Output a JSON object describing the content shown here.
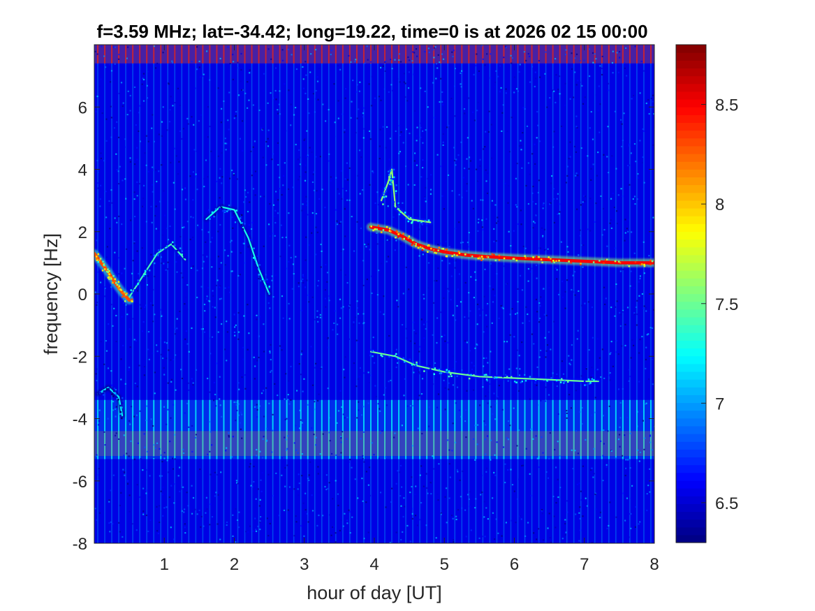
{
  "chart_data": {
    "type": "heatmap",
    "title": "f=3.59 MHz;  lat=-34.42; long=19.22, time=0 is at 2026 02 15 00:00",
    "xlabel": "hour of day [UT]",
    "ylabel": "frequency [Hz]",
    "xlim": [
      0,
      8
    ],
    "ylim": [
      -8,
      8
    ],
    "xticks": [
      1,
      2,
      3,
      4,
      5,
      6,
      7,
      8
    ],
    "yticks": [
      -8,
      -6,
      -4,
      -2,
      0,
      2,
      4,
      6
    ],
    "colormap": "jet",
    "colorbar": {
      "range": [
        6.3,
        8.8
      ],
      "ticks": [
        6.5,
        7,
        7.5,
        8,
        8.5
      ]
    },
    "background_level": 6.55,
    "bright_traces": [
      {
        "label": "positive Doppler trace",
        "level": 8.5,
        "points": [
          [
            3.95,
            2.15
          ],
          [
            4.2,
            2.05
          ],
          [
            4.4,
            1.85
          ],
          [
            4.6,
            1.6
          ],
          [
            4.8,
            1.45
          ],
          [
            5.0,
            1.35
          ],
          [
            5.3,
            1.25
          ],
          [
            5.6,
            1.2
          ],
          [
            6.0,
            1.15
          ],
          [
            6.5,
            1.1
          ],
          [
            7.0,
            1.05
          ],
          [
            7.5,
            1.0
          ],
          [
            8.0,
            1.0
          ]
        ]
      },
      {
        "label": "early morning burst",
        "level": 8.3,
        "points": [
          [
            0.0,
            1.3
          ],
          [
            0.1,
            1.0
          ],
          [
            0.2,
            0.7
          ],
          [
            0.3,
            0.35
          ],
          [
            0.4,
            0.05
          ],
          [
            0.5,
            -0.2
          ]
        ]
      }
    ],
    "faint_traces": [
      {
        "label": "arc 1",
        "level": 7.4,
        "points": [
          [
            0.5,
            -0.1
          ],
          [
            0.7,
            0.6
          ],
          [
            0.9,
            1.3
          ],
          [
            1.1,
            1.6
          ],
          [
            1.3,
            1.1
          ]
        ]
      },
      {
        "label": "arc 2",
        "level": 7.3,
        "points": [
          [
            1.6,
            2.4
          ],
          [
            1.8,
            2.8
          ],
          [
            2.0,
            2.7
          ],
          [
            2.2,
            1.8
          ],
          [
            2.35,
            0.8
          ],
          [
            2.5,
            0.0
          ]
        ]
      },
      {
        "label": "negative Doppler trace",
        "level": 7.5,
        "points": [
          [
            3.95,
            -1.85
          ],
          [
            4.3,
            -2.0
          ],
          [
            4.6,
            -2.3
          ],
          [
            5.0,
            -2.5
          ],
          [
            5.5,
            -2.65
          ],
          [
            6.0,
            -2.7
          ],
          [
            6.5,
            -2.75
          ],
          [
            7.0,
            -2.8
          ],
          [
            7.2,
            -2.8
          ]
        ]
      },
      {
        "label": "upper spray",
        "level": 7.6,
        "points": [
          [
            4.1,
            3.0
          ],
          [
            4.2,
            3.6
          ],
          [
            4.25,
            4.0
          ],
          [
            4.3,
            2.8
          ],
          [
            4.5,
            2.4
          ],
          [
            4.8,
            2.3
          ]
        ]
      },
      {
        "label": "low burst",
        "level": 7.2,
        "points": [
          [
            0.05,
            -3.2
          ],
          [
            0.2,
            -3.0
          ],
          [
            0.35,
            -3.3
          ],
          [
            0.4,
            -3.9
          ]
        ]
      }
    ],
    "vertical_stripes": {
      "spacing_hours": 0.1,
      "level": 7.1
    },
    "horizontal_bands": [
      {
        "y_range": [
          7.4,
          8.0
        ],
        "level": 8.2
      },
      {
        "y_range": [
          -5.2,
          -4.4
        ],
        "level": 8.2
      },
      {
        "y_range": [
          -5.3,
          -3.4
        ],
        "level": 7.0
      }
    ]
  }
}
